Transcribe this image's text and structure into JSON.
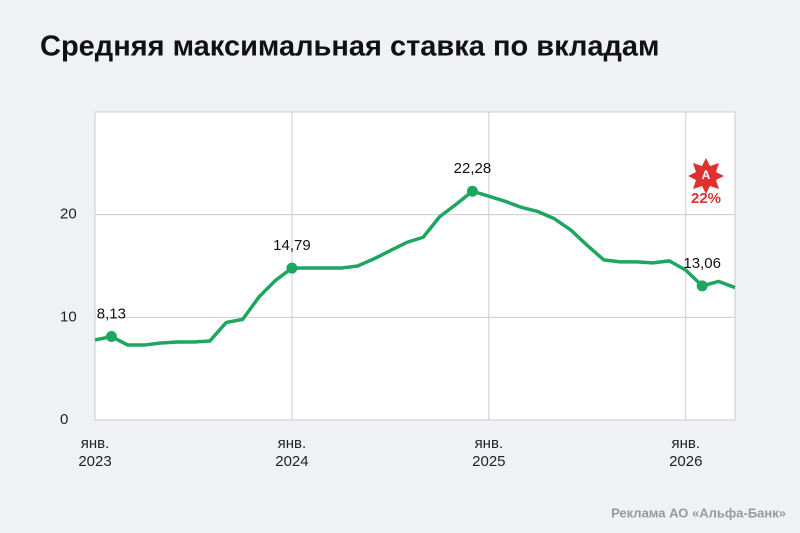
{
  "chart_data": {
    "type": "line",
    "title": "Средняя максимальная ставка по вкладам",
    "x": [
      "2023-01",
      "2023-02",
      "2023-03",
      "2023-04",
      "2023-05",
      "2023-06",
      "2023-07",
      "2023-08",
      "2023-09",
      "2023-10",
      "2023-11",
      "2023-12",
      "2024-01",
      "2024-02",
      "2024-03",
      "2024-04",
      "2024-05",
      "2024-06",
      "2024-07",
      "2024-08",
      "2024-09",
      "2024-10",
      "2024-11",
      "2024-12",
      "2025-01",
      "2025-02",
      "2025-03",
      "2025-04",
      "2025-05",
      "2025-06",
      "2025-07",
      "2025-08",
      "2025-09",
      "2025-10",
      "2025-11",
      "2025-12",
      "2026-01",
      "2026-02",
      "2026-03",
      "2026-04"
    ],
    "values": [
      7.8,
      8.13,
      7.3,
      7.3,
      7.5,
      7.6,
      7.6,
      7.7,
      9.5,
      9.8,
      12.0,
      13.6,
      14.79,
      14.8,
      14.8,
      14.8,
      15.0,
      15.7,
      16.5,
      17.3,
      17.8,
      19.8,
      21.0,
      22.28,
      21.8,
      21.3,
      20.7,
      20.3,
      19.6,
      18.5,
      17.0,
      15.6,
      15.4,
      15.4,
      15.3,
      15.5,
      14.6,
      13.06,
      13.5,
      12.9
    ],
    "value_labels": [
      null,
      "8,13",
      null,
      null,
      null,
      null,
      null,
      null,
      null,
      null,
      null,
      null,
      "14,79",
      null,
      null,
      null,
      null,
      null,
      null,
      null,
      null,
      null,
      null,
      "22,28",
      null,
      null,
      null,
      null,
      null,
      null,
      null,
      null,
      null,
      null,
      null,
      null,
      null,
      "13,06",
      null,
      null
    ],
    "color": "#1ea660",
    "xlim": [
      "2023-01",
      "2026-04"
    ],
    "xticks": [
      {
        "value": "2023-01",
        "label": "янв.\n2023"
      },
      {
        "value": "2024-01",
        "label": "янв.\n2024"
      },
      {
        "value": "2025-01",
        "label": "янв.\n2025"
      },
      {
        "value": "2026-01",
        "label": "янв.\n2026"
      }
    ],
    "ylim": [
      0,
      30
    ],
    "yticks": [
      0,
      10,
      20
    ],
    "grid": true,
    "badge": {
      "letter": "А",
      "text": "22%"
    },
    "footer": "Реклама АО «Альфа-Банк»"
  }
}
